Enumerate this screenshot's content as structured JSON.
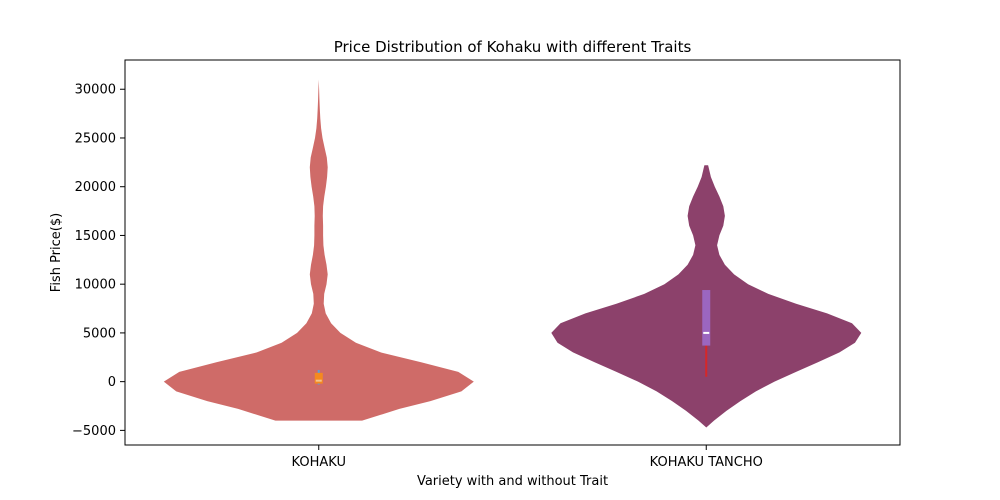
{
  "chart_data": {
    "type": "violin",
    "title": "Price Distribution of Kohaku with different Traits",
    "xlabel": "Variety with and without Trait",
    "ylabel": "Fish Price($)",
    "categories": [
      "KOHAKU",
      "KOHAKU TANCHO"
    ],
    "ylim": [
      -6500,
      33000
    ],
    "yticks": [
      -5000,
      0,
      5000,
      10000,
      15000,
      20000,
      25000,
      30000
    ],
    "yticklabels": [
      "−5000",
      "0",
      "5000",
      "10000",
      "15000",
      "20000",
      "25000",
      "30000"
    ],
    "grid": false,
    "series": [
      {
        "category": "KOHAKU",
        "color": "#cf6b68",
        "density": [
          [
            -4000,
            0.28
          ],
          [
            -3500,
            0.38
          ],
          [
            -2800,
            0.52
          ],
          [
            -2000,
            0.72
          ],
          [
            -1000,
            0.92
          ],
          [
            0,
            1.0
          ],
          [
            1000,
            0.9
          ],
          [
            2000,
            0.66
          ],
          [
            3000,
            0.4
          ],
          [
            4000,
            0.24
          ],
          [
            5000,
            0.14
          ],
          [
            6000,
            0.08
          ],
          [
            7000,
            0.045
          ],
          [
            8000,
            0.032
          ],
          [
            9000,
            0.035
          ],
          [
            10000,
            0.05
          ],
          [
            11000,
            0.058
          ],
          [
            12000,
            0.05
          ],
          [
            13000,
            0.038
          ],
          [
            14000,
            0.03
          ],
          [
            15000,
            0.028
          ],
          [
            16000,
            0.028
          ],
          [
            17000,
            0.026
          ],
          [
            18000,
            0.028
          ],
          [
            19000,
            0.036
          ],
          [
            20000,
            0.046
          ],
          [
            21000,
            0.054
          ],
          [
            22000,
            0.058
          ],
          [
            23000,
            0.052
          ],
          [
            24000,
            0.038
          ],
          [
            25000,
            0.024
          ],
          [
            26000,
            0.015
          ],
          [
            27000,
            0.01
          ],
          [
            28000,
            0.007
          ],
          [
            29000,
            0.004
          ],
          [
            30000,
            0.002
          ],
          [
            31000,
            0.0
          ]
        ],
        "box": {
          "q1": -200,
          "median": 100,
          "q3": 900,
          "whisker_low": -300,
          "whisker_high": 1200,
          "box_color": "#f5891f",
          "median_color": "#f4c48a",
          "whisker_color": "#5aa0d6"
        }
      },
      {
        "category": "KOHAKU TANCHO",
        "color": "#8c416b",
        "density": [
          [
            -4700,
            0.0
          ],
          [
            -4000,
            0.05
          ],
          [
            -3000,
            0.13
          ],
          [
            -2000,
            0.22
          ],
          [
            -1000,
            0.32
          ],
          [
            0,
            0.44
          ],
          [
            1000,
            0.58
          ],
          [
            2000,
            0.72
          ],
          [
            3000,
            0.86
          ],
          [
            4000,
            0.96
          ],
          [
            5000,
            1.0
          ],
          [
            6000,
            0.94
          ],
          [
            7000,
            0.78
          ],
          [
            8000,
            0.58
          ],
          [
            9000,
            0.4
          ],
          [
            10000,
            0.27
          ],
          [
            11000,
            0.18
          ],
          [
            12000,
            0.12
          ],
          [
            13000,
            0.085
          ],
          [
            14000,
            0.07
          ],
          [
            15000,
            0.085
          ],
          [
            16000,
            0.11
          ],
          [
            17000,
            0.12
          ],
          [
            18000,
            0.11
          ],
          [
            19000,
            0.085
          ],
          [
            20000,
            0.055
          ],
          [
            21000,
            0.03
          ],
          [
            22000,
            0.015
          ],
          [
            22200,
            0.012
          ]
        ],
        "box": {
          "q1": 3700,
          "median": 5000,
          "q3": 9400,
          "whisker_low": 500,
          "whisker_high": 9400,
          "box_color": "#9b66c0",
          "median_color": "#ffffff",
          "whisker_color": "#d62728"
        }
      }
    ]
  }
}
